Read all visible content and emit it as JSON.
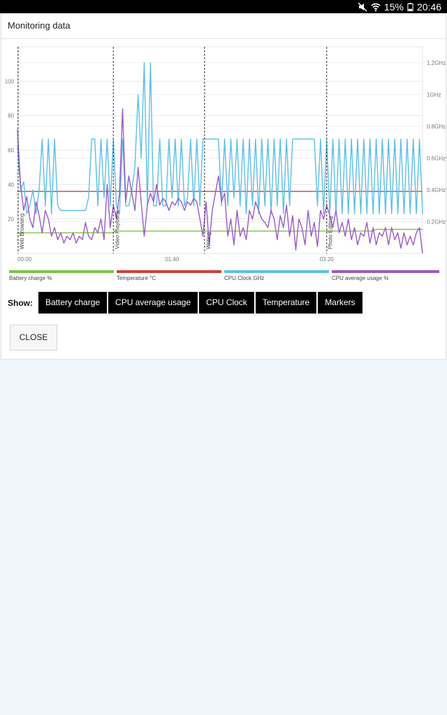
{
  "status_bar": {
    "battery_percent": "15%",
    "time": "20:46",
    "icons": [
      "mute-icon",
      "wifi-icon",
      "battery-icon"
    ]
  },
  "dialog": {
    "title": "Monitoring data",
    "show_label": "Show:",
    "toggle_buttons": [
      "Battery charge",
      "CPU average usage",
      "CPU Clock",
      "Temperature",
      "Markers"
    ],
    "close_label": "CLOSE"
  },
  "legend": [
    {
      "label": "Battery charge %",
      "color": "#7cc444"
    },
    {
      "label": "Temperature °C",
      "color": "#d0413a"
    },
    {
      "label": "CPU Clock GHz",
      "color": "#5bbfe6"
    },
    {
      "label": "CPU average usage %",
      "color": "#9b59c9"
    }
  ],
  "chart_data": {
    "type": "line",
    "x_tick_labels": [
      "00:00",
      "01:40",
      "03:20"
    ],
    "x_range_seconds": [
      0,
      262
    ],
    "x_ticks_seconds": [
      0,
      100,
      200
    ],
    "left_axis": {
      "ticks": [
        20,
        40,
        60,
        80,
        100
      ],
      "range": [
        0,
        120
      ]
    },
    "right_axis": {
      "tick_labels": [
        "0.2GHz",
        "0.4GHz",
        "0.6GHz",
        "0.8GHz",
        "1GHz",
        "1.2GHz"
      ],
      "ticks": [
        0.2,
        0.4,
        0.6,
        0.8,
        1.0,
        1.2
      ],
      "range": [
        0,
        1.3
      ]
    },
    "grid": true,
    "markers": [
      {
        "t": 0,
        "label": "Web Browsing"
      },
      {
        "t": 62,
        "label": "Video Playback"
      },
      {
        "t": 121,
        "label": "Writing"
      },
      {
        "t": 200,
        "label": "Photo Editing"
      }
    ],
    "series": [
      {
        "name": "Battery charge %",
        "axis": "left",
        "color": "#7cc444",
        "x": [
          0,
          62,
          62.5,
          121,
          121.5,
          200,
          200.5,
          230,
          232,
          262
        ],
        "values": [
          12,
          12,
          13,
          13,
          13,
          13,
          13,
          13,
          14,
          14
        ]
      },
      {
        "name": "Temperature °C",
        "axis": "left",
        "color": "#d0413a",
        "x": [
          0,
          262
        ],
        "values": [
          36,
          36
        ]
      },
      {
        "name": "CPU Clock GHz",
        "axis": "right",
        "color": "#5bbfe6",
        "x": [
          0,
          2,
          4,
          6,
          8,
          10,
          12,
          14,
          16,
          18,
          20,
          22,
          24,
          26,
          28,
          30,
          32,
          34,
          36,
          38,
          40,
          42,
          44,
          46,
          48,
          50,
          52,
          54,
          56,
          58,
          60,
          62,
          64,
          66,
          68,
          70,
          72,
          74,
          76,
          78,
          80,
          82,
          84,
          86,
          88,
          90,
          92,
          94,
          96,
          98,
          100,
          102,
          104,
          106,
          108,
          110,
          112,
          114,
          116,
          118,
          120,
          122,
          124,
          126,
          128,
          130,
          132,
          134,
          136,
          138,
          140,
          142,
          144,
          146,
          148,
          150,
          152,
          154,
          156,
          158,
          160,
          162,
          164,
          166,
          168,
          170,
          172,
          174,
          176,
          178,
          180,
          182,
          184,
          186,
          188,
          190,
          192,
          194,
          196,
          198,
          200,
          202,
          204,
          206,
          208,
          210,
          212,
          214,
          216,
          218,
          220,
          222,
          224,
          226,
          228,
          230,
          232,
          234,
          236,
          238,
          240,
          242,
          244,
          246,
          248,
          250,
          252,
          254,
          256,
          258,
          260,
          262
        ],
        "values": [
          0.68,
          0.4,
          0.45,
          0.25,
          0.3,
          0.4,
          0.25,
          0.4,
          0.72,
          0.3,
          0.72,
          0.25,
          0.72,
          0.3,
          0.27,
          0.27,
          0.27,
          0.27,
          0.27,
          0.27,
          0.27,
          0.27,
          0.27,
          0.35,
          0.72,
          0.72,
          0.3,
          0.72,
          0.35,
          0.72,
          0.3,
          0.72,
          0.3,
          0.25,
          0.72,
          0.3,
          0.3,
          0.4,
          0.55,
          1.0,
          0.6,
          1.2,
          0.3,
          1.2,
          0.3,
          0.3,
          0.72,
          0.3,
          0.3,
          0.72,
          0.35,
          0.72,
          0.3,
          0.72,
          0.3,
          0.35,
          0.72,
          0.3,
          0.72,
          0.3,
          0.72,
          0.72,
          0.72,
          0.72,
          0.72,
          0.72,
          0.3,
          0.72,
          0.3,
          0.72,
          0.35,
          0.72,
          0.3,
          0.72,
          0.25,
          0.72,
          0.3,
          0.72,
          0.25,
          0.72,
          0.3,
          0.72,
          0.25,
          0.72,
          0.3,
          0.72,
          0.25,
          0.72,
          0.3,
          0.72,
          0.72,
          0.72,
          0.72,
          0.72,
          0.72,
          0.72,
          0.72,
          0.3,
          0.72,
          0.25,
          0.72,
          0.25,
          0.72,
          0.25,
          0.72,
          0.25,
          0.72,
          0.25,
          0.72,
          0.25,
          0.72,
          0.25,
          0.72,
          0.25,
          0.72,
          0.25,
          0.72,
          0.25,
          0.72,
          0.25,
          0.72,
          0.25,
          0.72,
          0.25,
          0.72,
          0.25,
          0.72,
          0.25,
          0.72,
          0.25,
          0.72,
          0.25
        ]
      },
      {
        "name": "CPU average usage %",
        "axis": "left",
        "color": "#9b59c9",
        "x": [
          0,
          2,
          4,
          6,
          8,
          10,
          12,
          14,
          16,
          18,
          20,
          22,
          24,
          26,
          28,
          30,
          32,
          34,
          36,
          38,
          40,
          42,
          44,
          46,
          48,
          50,
          52,
          54,
          56,
          58,
          60,
          62,
          64,
          66,
          68,
          70,
          72,
          74,
          76,
          78,
          80,
          82,
          84,
          86,
          88,
          90,
          92,
          94,
          96,
          98,
          100,
          102,
          104,
          106,
          108,
          110,
          112,
          114,
          116,
          118,
          120,
          122,
          124,
          126,
          128,
          130,
          132,
          134,
          136,
          138,
          140,
          142,
          144,
          146,
          148,
          150,
          152,
          154,
          156,
          158,
          160,
          162,
          164,
          166,
          168,
          170,
          172,
          174,
          176,
          178,
          180,
          182,
          184,
          186,
          188,
          190,
          192,
          194,
          196,
          198,
          200,
          202,
          204,
          206,
          208,
          210,
          212,
          214,
          216,
          218,
          220,
          222,
          224,
          226,
          228,
          230,
          232,
          234,
          236,
          238,
          240,
          242,
          244,
          246,
          248,
          250,
          252,
          254,
          256,
          258,
          260,
          262
        ],
        "values": [
          72,
          40,
          25,
          33,
          20,
          15,
          30,
          22,
          12,
          25,
          20,
          10,
          15,
          8,
          12,
          6,
          10,
          8,
          12,
          6,
          10,
          8,
          18,
          10,
          8,
          15,
          12,
          20,
          8,
          40,
          15,
          28,
          20,
          35,
          84,
          30,
          45,
          35,
          25,
          50,
          30,
          10,
          28,
          35,
          30,
          40,
          28,
          32,
          30,
          25,
          30,
          28,
          32,
          30,
          25,
          30,
          28,
          32,
          30,
          20,
          10,
          30,
          5,
          25,
          35,
          45,
          30,
          35,
          10,
          20,
          5,
          25,
          10,
          15,
          8,
          25,
          20,
          30,
          25,
          20,
          18,
          15,
          25,
          20,
          8,
          22,
          15,
          28,
          10,
          22,
          2,
          20,
          15,
          5,
          25,
          10,
          18,
          4,
          25,
          20,
          28,
          22,
          15,
          25,
          12,
          18,
          10,
          20,
          8,
          15,
          5,
          12,
          10,
          18,
          6,
          15,
          5,
          12,
          10,
          15,
          5,
          15,
          8,
          12,
          3,
          12,
          5,
          10,
          5,
          12,
          15,
          0
        ]
      }
    ]
  }
}
